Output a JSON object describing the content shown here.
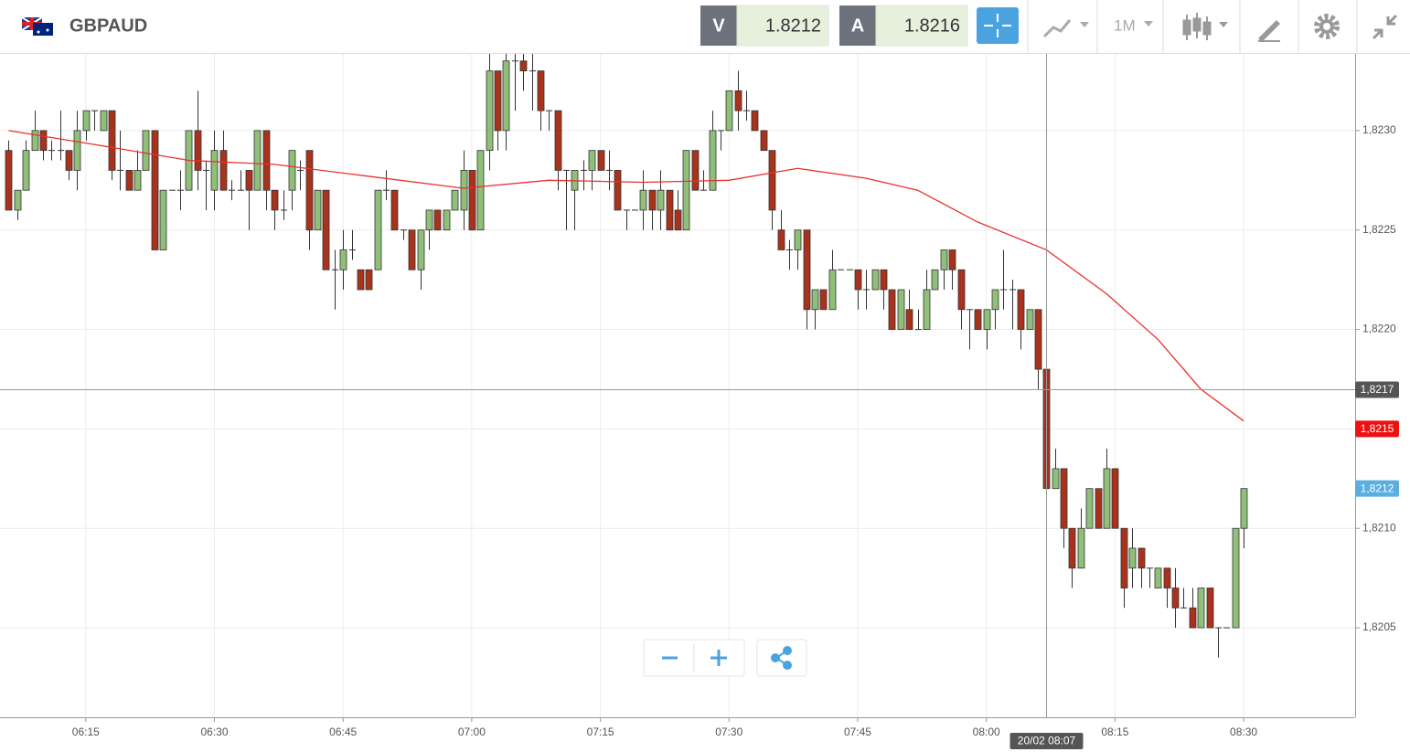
{
  "header": {
    "symbol": "GBPAUD",
    "bid": {
      "label": "V",
      "value": 1.8212
    },
    "ask": {
      "label": "A",
      "value": 1.8216
    },
    "timeframe": "1M"
  },
  "chart_data": {
    "type": "candlestick",
    "up_color": "#8fbf78",
    "down_color": "#a8321b",
    "xlim": [
      "06:05",
      "08:43"
    ],
    "xticks": [
      "06:15",
      "06:30",
      "06:45",
      "07:00",
      "07:15",
      "07:30",
      "07:45",
      "08:00",
      "08:15",
      "08:30"
    ],
    "ylim": [
      1.82005,
      1.82339
    ],
    "yticks": [
      {
        "value": 1.8205,
        "label": "1,8205"
      },
      {
        "value": 1.821,
        "label": "1,8210"
      },
      {
        "value": 1.8215,
        "label": "1,8215"
      },
      {
        "value": 1.822,
        "label": "1,8220"
      },
      {
        "value": 1.8225,
        "label": "1,8225"
      },
      {
        "value": 1.823,
        "label": "1,8230"
      }
    ],
    "grid": true,
    "x": [
      "06:06",
      "06:07",
      "06:08",
      "06:09",
      "06:10",
      "06:11",
      "06:12",
      "06:13",
      "06:14",
      "06:15",
      "06:16",
      "06:17",
      "06:18",
      "06:19",
      "06:20",
      "06:21",
      "06:22",
      "06:23",
      "06:24",
      "06:25",
      "06:26",
      "06:27",
      "06:28",
      "06:29",
      "06:30",
      "06:31",
      "06:32",
      "06:33",
      "06:34",
      "06:35",
      "06:36",
      "06:37",
      "06:38",
      "06:39",
      "06:40",
      "06:41",
      "06:42",
      "06:43",
      "06:44",
      "06:45",
      "06:46",
      "06:47",
      "06:48",
      "06:49",
      "06:50",
      "06:51",
      "06:52",
      "06:53",
      "06:54",
      "06:55",
      "06:56",
      "06:57",
      "06:58",
      "06:59",
      "07:00",
      "07:01",
      "07:02",
      "07:03",
      "07:04",
      "07:05",
      "07:06",
      "07:07",
      "07:08",
      "07:09",
      "07:10",
      "07:11",
      "07:12",
      "07:13",
      "07:14",
      "07:15",
      "07:16",
      "07:17",
      "07:18",
      "07:19",
      "07:20",
      "07:21",
      "07:22",
      "07:23",
      "07:24",
      "07:25",
      "07:26",
      "07:27",
      "07:28",
      "07:29",
      "07:30",
      "07:31",
      "07:32",
      "07:33",
      "07:34",
      "07:35",
      "07:36",
      "07:37",
      "07:38",
      "07:39",
      "07:40",
      "07:41",
      "07:42",
      "07:43",
      "07:44",
      "07:45",
      "07:46",
      "07:47",
      "07:48",
      "07:49",
      "07:50",
      "07:51",
      "07:52",
      "07:53",
      "07:54",
      "07:55",
      "07:56",
      "07:57",
      "07:58",
      "07:59",
      "08:00",
      "08:01",
      "08:02",
      "08:03",
      "08:04",
      "08:05",
      "08:06",
      "08:07",
      "08:08",
      "08:09",
      "08:10",
      "08:11",
      "08:12",
      "08:13",
      "08:14",
      "08:15",
      "08:16",
      "08:17",
      "08:18",
      "08:19",
      "08:20",
      "08:21",
      "08:22",
      "08:23",
      "08:24",
      "08:25",
      "08:26",
      "08:27",
      "08:28",
      "08:29",
      "08:30"
    ],
    "open": [
      1.8229,
      1.8226,
      1.8227,
      1.8229,
      1.823,
      1.8229,
      1.8229,
      1.8229,
      1.8228,
      1.823,
      1.8231,
      1.823,
      1.8231,
      1.8228,
      1.8228,
      1.8227,
      1.8228,
      1.823,
      1.8224,
      1.8227,
      1.8227,
      1.8227,
      1.823,
      1.8228,
      1.8227,
      1.8229,
      1.8227,
      1.8227,
      1.8228,
      1.8227,
      1.823,
      1.8227,
      1.8226,
      1.8227,
      1.8228,
      1.8229,
      1.8225,
      1.8227,
      1.8223,
      1.8223,
      1.8224,
      1.8223,
      1.8223,
      1.8223,
      1.8227,
      1.8227,
      1.8225,
      1.8225,
      1.8223,
      1.8225,
      1.8226,
      1.8225,
      1.8226,
      1.8226,
      1.8228,
      1.8225,
      1.8229,
      1.8233,
      1.823,
      1.82335,
      1.82335,
      1.8233,
      1.8233,
      1.8231,
      1.8231,
      1.8228,
      1.8227,
      1.8228,
      1.8228,
      1.8229,
      1.8228,
      1.8228,
      1.8226,
      1.8226,
      1.8226,
      1.8227,
      1.8226,
      1.8227,
      1.8226,
      1.8225,
      1.8229,
      1.8227,
      1.8227,
      1.823,
      1.823,
      1.8232,
      1.8231,
      1.8231,
      1.823,
      1.8229,
      1.8225,
      1.8224,
      1.8224,
      1.8225,
      1.8221,
      1.8222,
      1.8221,
      1.8223,
      1.8223,
      1.8223,
      1.8222,
      1.8222,
      1.8223,
      1.8222,
      1.822,
      1.8221,
      1.822,
      1.822,
      1.8222,
      1.8223,
      1.8224,
      1.8223,
      1.8221,
      1.8221,
      1.822,
      1.8221,
      1.8222,
      1.8222,
      1.8222,
      1.822,
      1.8221,
      1.8218,
      1.8212,
      1.8213,
      1.821,
      1.8208,
      1.821,
      1.8212,
      1.821,
      1.8213,
      1.821,
      1.8208,
      1.8209,
      1.8208,
      1.8207,
      1.8208,
      1.8207,
      1.8206,
      1.8206,
      1.8205,
      1.8207,
      1.8205,
      1.8205,
      1.8205,
      1.821
    ],
    "high": [
      1.82295,
      1.8227,
      1.82295,
      1.8231,
      1.823,
      1.82295,
      1.8231,
      1.8229,
      1.8231,
      1.8231,
      1.8231,
      1.8231,
      1.8231,
      1.823,
      1.8228,
      1.8229,
      1.823,
      1.823,
      1.8227,
      1.8227,
      1.8228,
      1.823,
      1.8232,
      1.82285,
      1.823,
      1.823,
      1.82275,
      1.8228,
      1.8228,
      1.823,
      1.823,
      1.8227,
      1.8227,
      1.8229,
      1.82285,
      1.8229,
      1.8227,
      1.8227,
      1.8224,
      1.8225,
      1.8225,
      1.8223,
      1.8223,
      1.8227,
      1.8228,
      1.8227,
      1.8225,
      1.8225,
      1.8225,
      1.8226,
      1.8226,
      1.8226,
      1.8227,
      1.8229,
      1.8228,
      1.8229,
      1.8234,
      1.8233,
      1.8234,
      1.8234,
      1.8234,
      1.8234,
      1.8233,
      1.8231,
      1.8231,
      1.8228,
      1.8228,
      1.82285,
      1.8229,
      1.8229,
      1.8229,
      1.8228,
      1.8226,
      1.8226,
      1.8228,
      1.8227,
      1.8228,
      1.8227,
      1.8227,
      1.8229,
      1.8229,
      1.8228,
      1.8231,
      1.823,
      1.8232,
      1.8233,
      1.8232,
      1.8231,
      1.823,
      1.8229,
      1.8226,
      1.82245,
      1.8225,
      1.8225,
      1.8222,
      1.8222,
      1.8224,
      1.8223,
      1.8223,
      1.8223,
      1.8223,
      1.8223,
      1.8223,
      1.8222,
      1.8222,
      1.8222,
      1.8221,
      1.8223,
      1.8223,
      1.8224,
      1.8224,
      1.8223,
      1.8221,
      1.8221,
      1.8221,
      1.8222,
      1.8224,
      1.82225,
      1.8222,
      1.8221,
      1.8221,
      1.8218,
      1.8214,
      1.8213,
      1.821,
      1.8211,
      1.8212,
      1.8212,
      1.8214,
      1.8213,
      1.821,
      1.821,
      1.8209,
      1.8208,
      1.8208,
      1.8208,
      1.8208,
      1.8207,
      1.8207,
      1.8207,
      1.8207,
      1.8205,
      1.8205,
      1.821,
      1.8212
    ],
    "low": [
      1.8226,
      1.82255,
      1.8227,
      1.8229,
      1.82285,
      1.82285,
      1.82285,
      1.82275,
      1.8227,
      1.82295,
      1.823,
      1.823,
      1.82275,
      1.8227,
      1.8227,
      1.8227,
      1.8228,
      1.8224,
      1.8224,
      1.8227,
      1.8226,
      1.8227,
      1.8227,
      1.8226,
      1.8226,
      1.8227,
      1.82265,
      1.8227,
      1.8225,
      1.8227,
      1.8226,
      1.8225,
      1.82255,
      1.8226,
      1.8227,
      1.8224,
      1.8225,
      1.8223,
      1.8221,
      1.8222,
      1.82235,
      1.8222,
      1.8222,
      1.8223,
      1.82265,
      1.8225,
      1.82245,
      1.8223,
      1.8222,
      1.8224,
      1.8225,
      1.8225,
      1.8226,
      1.8225,
      1.8225,
      1.8225,
      1.8228,
      1.8229,
      1.8229,
      1.8231,
      1.8232,
      1.8231,
      1.823,
      1.823,
      1.8227,
      1.8225,
      1.8225,
      1.8227,
      1.8227,
      1.8228,
      1.8227,
      1.8226,
      1.8225,
      1.8226,
      1.8225,
      1.8225,
      1.8225,
      1.8225,
      1.8225,
      1.8225,
      1.8227,
      1.8227,
      1.8227,
      1.8229,
      1.823,
      1.823,
      1.82305,
      1.823,
      1.8229,
      1.8225,
      1.8224,
      1.8223,
      1.8223,
      1.822,
      1.822,
      1.8221,
      1.8221,
      1.8223,
      1.8223,
      1.8221,
      1.8221,
      1.8222,
      1.8221,
      1.822,
      1.822,
      1.822,
      1.822,
      1.822,
      1.8222,
      1.8222,
      1.8222,
      1.822,
      1.8219,
      1.822,
      1.8219,
      1.822,
      1.8221,
      1.822,
      1.8219,
      1.822,
      1.8217,
      1.8212,
      1.8212,
      1.8209,
      1.8207,
      1.8208,
      1.821,
      1.821,
      1.821,
      1.821,
      1.8206,
      1.8207,
      1.8207,
      1.8207,
      1.8207,
      1.8206,
      1.8205,
      1.8206,
      1.8205,
      1.8205,
      1.8205,
      1.82035,
      1.8205,
      1.8205,
      1.8209
    ],
    "close": [
      1.8226,
      1.8227,
      1.8229,
      1.823,
      1.8229,
      1.8229,
      1.8229,
      1.8228,
      1.823,
      1.8231,
      1.8231,
      1.8231,
      1.8228,
      1.8228,
      1.8227,
      1.8228,
      1.823,
      1.8224,
      1.8227,
      1.8227,
      1.8227,
      1.823,
      1.8228,
      1.8228,
      1.8229,
      1.8227,
      1.8227,
      1.8227,
      1.8227,
      1.823,
      1.8227,
      1.8226,
      1.8226,
      1.8229,
      1.8228,
      1.8225,
      1.8227,
      1.8223,
      1.8223,
      1.8224,
      1.8224,
      1.8222,
      1.8222,
      1.8227,
      1.8227,
      1.8225,
      1.8225,
      1.8223,
      1.8225,
      1.8226,
      1.8225,
      1.8226,
      1.8227,
      1.8228,
      1.8225,
      1.8229,
      1.8233,
      1.823,
      1.82335,
      1.82335,
      1.8233,
      1.8233,
      1.8231,
      1.8231,
      1.8228,
      1.8228,
      1.8228,
      1.8228,
      1.8229,
      1.8228,
      1.8228,
      1.8226,
      1.8226,
      1.8226,
      1.8227,
      1.8226,
      1.8227,
      1.8225,
      1.8225,
      1.8229,
      1.8227,
      1.8227,
      1.823,
      1.823,
      1.8232,
      1.8231,
      1.8231,
      1.823,
      1.8229,
      1.8226,
      1.8224,
      1.8224,
      1.8225,
      1.8221,
      1.8222,
      1.8221,
      1.8223,
      1.8223,
      1.8223,
      1.8222,
      1.8222,
      1.8223,
      1.8222,
      1.822,
      1.8222,
      1.822,
      1.822,
      1.8222,
      1.8223,
      1.8224,
      1.8223,
      1.8221,
      1.8221,
      1.822,
      1.8221,
      1.8222,
      1.8222,
      1.8222,
      1.822,
      1.8221,
      1.8218,
      1.8212,
      1.8213,
      1.821,
      1.8208,
      1.821,
      1.8212,
      1.821,
      1.8213,
      1.821,
      1.8207,
      1.8209,
      1.8208,
      1.8208,
      1.8208,
      1.8207,
      1.8206,
      1.8206,
      1.8205,
      1.8207,
      1.8205,
      1.8205,
      1.8205,
      1.821,
      1.8212
    ],
    "ma": {
      "color": "#e8322e",
      "x": [
        "06:06",
        "06:16",
        "06:27",
        "06:37",
        "06:48",
        "06:59",
        "07:09",
        "07:20",
        "07:30",
        "07:38",
        "07:46",
        "07:52",
        "07:59",
        "08:07",
        "08:14",
        "08:20",
        "08:25",
        "08:30"
      ],
      "values": [
        1.823,
        1.82293,
        1.82285,
        1.82283,
        1.82277,
        1.82271,
        1.82275,
        1.82274,
        1.82275,
        1.82281,
        1.82276,
        1.8227,
        1.82254,
        1.8224,
        1.82218,
        1.82195,
        1.8217,
        1.82154
      ]
    },
    "crosshair": {
      "x": "08:07",
      "x_label": "20/02 08:07",
      "y": 1.8217,
      "y_label": "1,8217"
    },
    "price_tags": [
      {
        "value": 1.8215,
        "label": "1,8215",
        "color": "#ee1111"
      },
      {
        "value": 1.8212,
        "label": "1,8212",
        "color": "#5aaee0"
      }
    ]
  }
}
